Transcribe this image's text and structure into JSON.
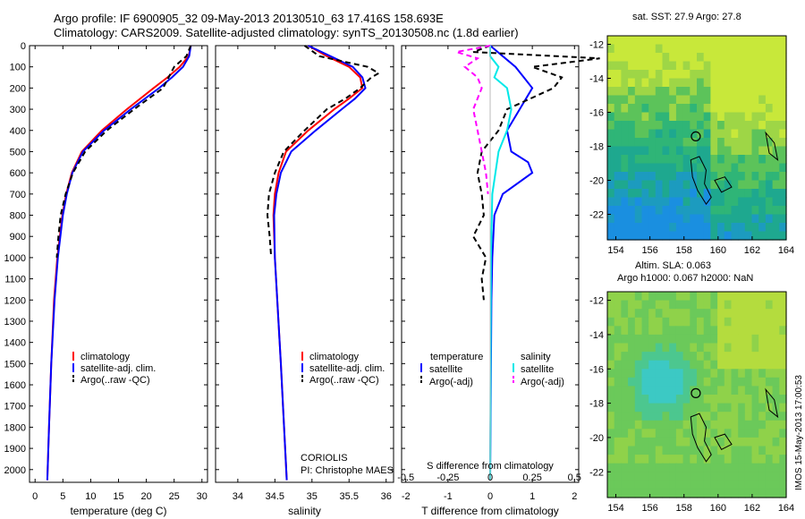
{
  "titles": {
    "line1": "Argo profile: IF 6900905_32 09-May-2013 20130510_63 17.416S 158.693E",
    "line2": "Climatology: CARS2009. Satellite-adjusted climatology: synTS_20130508.nc (1.8d earlier)"
  },
  "stamp": "IMOS 15-May-2013 17:00:53",
  "depth_ticks": [
    0,
    100,
    200,
    300,
    400,
    500,
    600,
    700,
    800,
    900,
    1000,
    1100,
    1200,
    1300,
    1400,
    1500,
    1600,
    1700,
    1800,
    1900,
    2000
  ],
  "chart_data": [
    {
      "type": "line",
      "xlabel": "temperature (deg C)",
      "xlim": [
        -1,
        31
      ],
      "ylim": [
        0,
        2060
      ],
      "xticks": [
        0,
        5,
        10,
        15,
        20,
        25,
        30
      ],
      "legend": [
        "climatology",
        "satellite-adj. clim.",
        "Argo(..raw -QC)"
      ],
      "legend_placement": "lower-middle",
      "series": [
        {
          "name": "climatology",
          "color": "#ff0000",
          "dash": "",
          "depth": [
            0,
            50,
            100,
            150,
            200,
            300,
            400,
            500,
            600,
            700,
            800,
            1000,
            1200,
            1500,
            1800,
            2050
          ],
          "values": [
            28.0,
            27.6,
            26.0,
            23.8,
            21.3,
            16.5,
            12.0,
            8.4,
            6.6,
            5.6,
            4.9,
            4.0,
            3.4,
            2.9,
            2.5,
            2.2
          ]
        },
        {
          "name": "satellite-adj. clim.",
          "color": "#0000ff",
          "dash": "",
          "depth": [
            0,
            50,
            100,
            150,
            200,
            300,
            400,
            500,
            600,
            700,
            800,
            1000,
            1200,
            1500,
            1800,
            2050
          ],
          "values": [
            28.0,
            27.7,
            26.6,
            24.6,
            22.3,
            17.2,
            12.4,
            8.6,
            6.7,
            5.7,
            5.0,
            4.1,
            3.5,
            2.9,
            2.5,
            2.2
          ]
        },
        {
          "name": "Argo(..raw -QC)",
          "color": "#000000",
          "dash": "6,4",
          "depth": [
            0,
            50,
            100,
            150,
            200,
            300,
            400,
            500,
            600,
            700,
            800,
            900,
            1000
          ],
          "values": [
            28.0,
            27.2,
            25.0,
            24.0,
            23.0,
            17.8,
            12.9,
            9.0,
            6.8,
            5.5,
            4.6,
            4.2,
            3.9
          ]
        }
      ]
    },
    {
      "type": "line",
      "xlabel": "salinity",
      "xlim": [
        33.7,
        36.1
      ],
      "ylim": [
        0,
        2060
      ],
      "xticks": [
        34,
        34.5,
        35,
        35.5,
        36
      ],
      "xtick_labels": [
        "34",
        "34.5",
        "35",
        "35.5",
        "36"
      ],
      "legend": [
        "climatology",
        "satellite-adj. clim.",
        "Argo(..raw -QC)"
      ],
      "legend_placement": "lower-right",
      "annotation": [
        "CORIOLIS",
        "PI: Christophe MAES"
      ],
      "series": [
        {
          "name": "climatology",
          "color": "#ff0000",
          "dash": "",
          "depth": [
            0,
            50,
            100,
            150,
            200,
            250,
            300,
            400,
            500,
            600,
            700,
            800,
            1000,
            1500,
            2050
          ],
          "values": [
            34.95,
            35.2,
            35.5,
            35.65,
            35.68,
            35.5,
            35.3,
            34.95,
            34.65,
            34.55,
            34.5,
            34.48,
            34.5,
            34.58,
            34.66
          ]
        },
        {
          "name": "satellite-adj. clim.",
          "color": "#0000ff",
          "dash": "",
          "depth": [
            0,
            50,
            100,
            150,
            200,
            250,
            300,
            400,
            500,
            600,
            700,
            800,
            1000,
            1500,
            2050
          ],
          "values": [
            34.95,
            35.25,
            35.55,
            35.68,
            35.72,
            35.58,
            35.4,
            35.05,
            34.72,
            34.58,
            34.52,
            34.49,
            34.5,
            34.58,
            34.66
          ]
        },
        {
          "name": "Argo(..raw -QC)",
          "color": "#000000",
          "dash": "6,4",
          "depth": [
            0,
            50,
            100,
            130,
            150,
            200,
            250,
            300,
            400,
            500,
            600,
            700,
            800,
            900,
            1000
          ],
          "values": [
            34.9,
            35.1,
            35.75,
            35.9,
            35.8,
            35.65,
            35.45,
            35.2,
            34.9,
            34.62,
            34.5,
            34.42,
            34.4,
            34.43,
            34.45
          ]
        }
      ]
    },
    {
      "type": "line",
      "xlabel": "T difference from climatology",
      "xlabel2": "S difference from climatology",
      "xlim": [
        -2.1,
        2.1
      ],
      "ylim": [
        0,
        2060
      ],
      "xticks": [
        -2,
        -1,
        0,
        1,
        2
      ],
      "xticks_top": [
        -0.5,
        -0.25,
        0,
        0.25,
        0.5
      ],
      "xticks_top_labels": [
        "-0.5",
        "-0.25",
        "0",
        "0.25",
        "0.5"
      ],
      "legend_temperature_head": "temperature",
      "legend_salinity_head": "salinity",
      "legend_temperature": [
        "satellite",
        "Argo(-adj)"
      ],
      "legend_salinity": [
        "satellite",
        "Argo(-adj)"
      ],
      "legend_placement": "lower-middle",
      "series": [
        {
          "name": "satellite",
          "color": "#0000ff",
          "dash": "",
          "depth": [
            0,
            50,
            100,
            150,
            200,
            300,
            400,
            500,
            550,
            600,
            700,
            800,
            1000,
            1200,
            1500,
            2050
          ],
          "values": [
            0,
            0.3,
            0.6,
            0.8,
            1.0,
            0.7,
            0.4,
            0.5,
            0.9,
            1.0,
            0.3,
            0.1,
            0.05,
            0.03,
            0.02,
            0
          ]
        },
        {
          "name": "Argo(-adj)",
          "color": "#000000",
          "dash": "6,4",
          "depth": [
            0,
            30,
            60,
            100,
            150,
            200,
            300,
            400,
            500,
            600,
            700,
            800,
            900,
            1000,
            1100,
            1200
          ],
          "values": [
            0,
            -0.4,
            2.6,
            1.0,
            1.7,
            1.5,
            0.4,
            0.2,
            -0.2,
            -0.3,
            -0.2,
            -0.15,
            -0.4,
            -0.1,
            -0.2,
            -0.15
          ]
        },
        {
          "name": "satellite",
          "color": "#00e8e8",
          "dash": "",
          "depth": [
            0,
            50,
            100,
            150,
            200,
            300,
            400,
            500,
            700,
            1000,
            1500,
            2050
          ],
          "values": [
            0,
            0.0,
            0.2,
            0.1,
            0.4,
            0.5,
            0.4,
            0.2,
            0.05,
            0.02,
            0.01,
            0
          ]
        },
        {
          "name": "Argo(-adj)",
          "color": "#ff00ff",
          "dash": "6,4",
          "depth": [
            0,
            30,
            60,
            100,
            150,
            200,
            300,
            400,
            500,
            600,
            700
          ],
          "values": [
            0,
            -0.8,
            -0.3,
            -0.6,
            -0.3,
            -0.2,
            -0.4,
            -0.3,
            -0.2,
            -0.1,
            -0.05
          ]
        }
      ]
    },
    {
      "type": "heatmap",
      "title": "sat. SST: 27.9 Argo: 27.8",
      "xlim": [
        153.5,
        164
      ],
      "ylim": [
        -23.5,
        -11.5
      ],
      "xticks": [
        154,
        156,
        158,
        160,
        162,
        164
      ],
      "yticks": [
        -12,
        -14,
        -16,
        -18,
        -20,
        -22
      ],
      "marker": {
        "lon": 158.693,
        "lat": -17.416
      }
    },
    {
      "type": "heatmap",
      "title_line1": "Altim. SLA: 0.063",
      "title_line2": "Argo h1000: 0.067 h2000: NaN",
      "xlim": [
        153.5,
        164
      ],
      "ylim": [
        -23.5,
        -11.5
      ],
      "xticks": [
        154,
        156,
        158,
        160,
        162,
        164
      ],
      "yticks": [
        -12,
        -14,
        -16,
        -18,
        -20,
        -22
      ],
      "marker": {
        "lon": 158.693,
        "lat": -17.416
      }
    }
  ]
}
